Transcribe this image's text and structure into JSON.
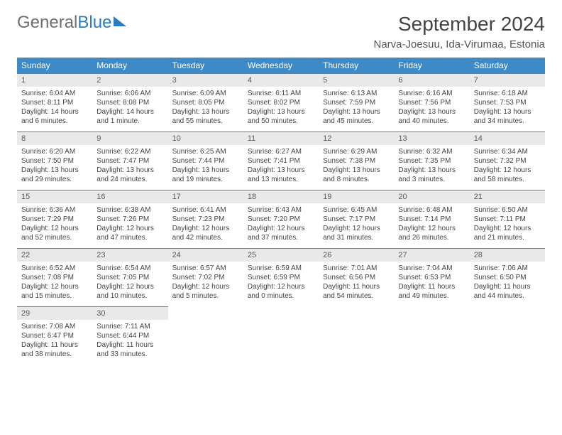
{
  "logo": {
    "text1": "General",
    "text2": "Blue"
  },
  "title": "September 2024",
  "location": "Narva-Joesuu, Ida-Virumaa, Estonia",
  "colors": {
    "header_bg": "#3d8ac7",
    "header_fg": "#ffffff",
    "daynum_bg": "#e9e9e9",
    "border": "#3d8ac7",
    "logo_gray": "#6e6e6e",
    "logo_blue": "#2c7bbf"
  },
  "weekdays": [
    "Sunday",
    "Monday",
    "Tuesday",
    "Wednesday",
    "Thursday",
    "Friday",
    "Saturday"
  ],
  "weeks": [
    [
      {
        "n": "1",
        "sr": "Sunrise: 6:04 AM",
        "ss": "Sunset: 8:11 PM",
        "dl": "Daylight: 14 hours and 6 minutes."
      },
      {
        "n": "2",
        "sr": "Sunrise: 6:06 AM",
        "ss": "Sunset: 8:08 PM",
        "dl": "Daylight: 14 hours and 1 minute."
      },
      {
        "n": "3",
        "sr": "Sunrise: 6:09 AM",
        "ss": "Sunset: 8:05 PM",
        "dl": "Daylight: 13 hours and 55 minutes."
      },
      {
        "n": "4",
        "sr": "Sunrise: 6:11 AM",
        "ss": "Sunset: 8:02 PM",
        "dl": "Daylight: 13 hours and 50 minutes."
      },
      {
        "n": "5",
        "sr": "Sunrise: 6:13 AM",
        "ss": "Sunset: 7:59 PM",
        "dl": "Daylight: 13 hours and 45 minutes."
      },
      {
        "n": "6",
        "sr": "Sunrise: 6:16 AM",
        "ss": "Sunset: 7:56 PM",
        "dl": "Daylight: 13 hours and 40 minutes."
      },
      {
        "n": "7",
        "sr": "Sunrise: 6:18 AM",
        "ss": "Sunset: 7:53 PM",
        "dl": "Daylight: 13 hours and 34 minutes."
      }
    ],
    [
      {
        "n": "8",
        "sr": "Sunrise: 6:20 AM",
        "ss": "Sunset: 7:50 PM",
        "dl": "Daylight: 13 hours and 29 minutes."
      },
      {
        "n": "9",
        "sr": "Sunrise: 6:22 AM",
        "ss": "Sunset: 7:47 PM",
        "dl": "Daylight: 13 hours and 24 minutes."
      },
      {
        "n": "10",
        "sr": "Sunrise: 6:25 AM",
        "ss": "Sunset: 7:44 PM",
        "dl": "Daylight: 13 hours and 19 minutes."
      },
      {
        "n": "11",
        "sr": "Sunrise: 6:27 AM",
        "ss": "Sunset: 7:41 PM",
        "dl": "Daylight: 13 hours and 13 minutes."
      },
      {
        "n": "12",
        "sr": "Sunrise: 6:29 AM",
        "ss": "Sunset: 7:38 PM",
        "dl": "Daylight: 13 hours and 8 minutes."
      },
      {
        "n": "13",
        "sr": "Sunrise: 6:32 AM",
        "ss": "Sunset: 7:35 PM",
        "dl": "Daylight: 13 hours and 3 minutes."
      },
      {
        "n": "14",
        "sr": "Sunrise: 6:34 AM",
        "ss": "Sunset: 7:32 PM",
        "dl": "Daylight: 12 hours and 58 minutes."
      }
    ],
    [
      {
        "n": "15",
        "sr": "Sunrise: 6:36 AM",
        "ss": "Sunset: 7:29 PM",
        "dl": "Daylight: 12 hours and 52 minutes."
      },
      {
        "n": "16",
        "sr": "Sunrise: 6:38 AM",
        "ss": "Sunset: 7:26 PM",
        "dl": "Daylight: 12 hours and 47 minutes."
      },
      {
        "n": "17",
        "sr": "Sunrise: 6:41 AM",
        "ss": "Sunset: 7:23 PM",
        "dl": "Daylight: 12 hours and 42 minutes."
      },
      {
        "n": "18",
        "sr": "Sunrise: 6:43 AM",
        "ss": "Sunset: 7:20 PM",
        "dl": "Daylight: 12 hours and 37 minutes."
      },
      {
        "n": "19",
        "sr": "Sunrise: 6:45 AM",
        "ss": "Sunset: 7:17 PM",
        "dl": "Daylight: 12 hours and 31 minutes."
      },
      {
        "n": "20",
        "sr": "Sunrise: 6:48 AM",
        "ss": "Sunset: 7:14 PM",
        "dl": "Daylight: 12 hours and 26 minutes."
      },
      {
        "n": "21",
        "sr": "Sunrise: 6:50 AM",
        "ss": "Sunset: 7:11 PM",
        "dl": "Daylight: 12 hours and 21 minutes."
      }
    ],
    [
      {
        "n": "22",
        "sr": "Sunrise: 6:52 AM",
        "ss": "Sunset: 7:08 PM",
        "dl": "Daylight: 12 hours and 15 minutes."
      },
      {
        "n": "23",
        "sr": "Sunrise: 6:54 AM",
        "ss": "Sunset: 7:05 PM",
        "dl": "Daylight: 12 hours and 10 minutes."
      },
      {
        "n": "24",
        "sr": "Sunrise: 6:57 AM",
        "ss": "Sunset: 7:02 PM",
        "dl": "Daylight: 12 hours and 5 minutes."
      },
      {
        "n": "25",
        "sr": "Sunrise: 6:59 AM",
        "ss": "Sunset: 6:59 PM",
        "dl": "Daylight: 12 hours and 0 minutes."
      },
      {
        "n": "26",
        "sr": "Sunrise: 7:01 AM",
        "ss": "Sunset: 6:56 PM",
        "dl": "Daylight: 11 hours and 54 minutes."
      },
      {
        "n": "27",
        "sr": "Sunrise: 7:04 AM",
        "ss": "Sunset: 6:53 PM",
        "dl": "Daylight: 11 hours and 49 minutes."
      },
      {
        "n": "28",
        "sr": "Sunrise: 7:06 AM",
        "ss": "Sunset: 6:50 PM",
        "dl": "Daylight: 11 hours and 44 minutes."
      }
    ],
    [
      {
        "n": "29",
        "sr": "Sunrise: 7:08 AM",
        "ss": "Sunset: 6:47 PM",
        "dl": "Daylight: 11 hours and 38 minutes."
      },
      {
        "n": "30",
        "sr": "Sunrise: 7:11 AM",
        "ss": "Sunset: 6:44 PM",
        "dl": "Daylight: 11 hours and 33 minutes."
      },
      null,
      null,
      null,
      null,
      null
    ]
  ]
}
